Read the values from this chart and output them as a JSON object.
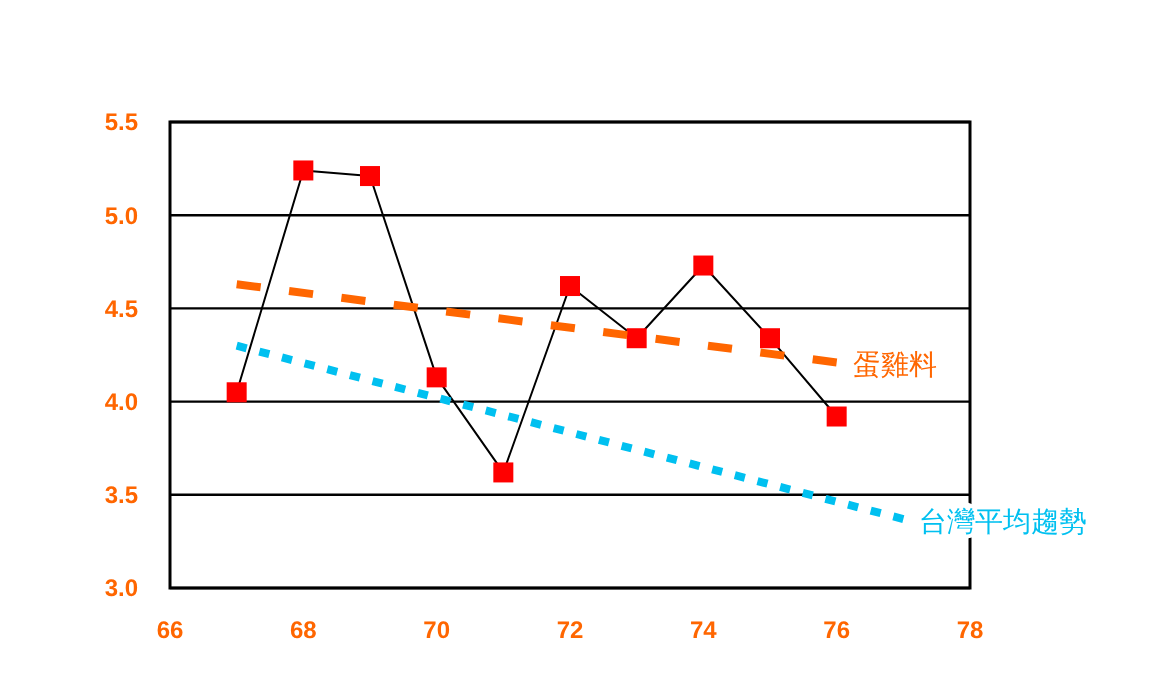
{
  "chart_data": {
    "type": "line",
    "x": [
      67,
      68,
      69,
      70,
      71,
      72,
      73,
      74,
      75,
      76
    ],
    "series": [
      {
        "color": "#ff0000",
        "marker": "square",
        "values": [
          4.05,
          5.24,
          5.21,
          4.13,
          3.62,
          4.62,
          4.34,
          4.73,
          4.34,
          3.92
        ]
      },
      {
        "name": "蛋雞料",
        "color": "#ff6600",
        "marker": "none",
        "line_style": "dashed",
        "x": [
          67,
          76
        ],
        "values": [
          4.63,
          4.21
        ]
      },
      {
        "name": "台灣平均趨勢",
        "color": "#00c0f0",
        "marker": "none",
        "line_style": "dotted",
        "x": [
          67,
          77
        ],
        "values": [
          4.3,
          3.37
        ]
      }
    ],
    "xlim": [
      66,
      78
    ],
    "xticks": [
      66,
      68,
      70,
      72,
      74,
      76,
      78
    ],
    "ylim": [
      3.0,
      5.5
    ],
    "yticks": [
      {
        "value": 3.0,
        "label": "3.0"
      },
      {
        "value": 3.5,
        "label": "3.5"
      },
      {
        "value": 4.0,
        "label": "4.0"
      },
      {
        "value": 4.5,
        "label": "4.5"
      },
      {
        "value": 5.0,
        "label": "5.0"
      },
      {
        "value": 5.5,
        "label": "5.5"
      }
    ],
    "grid": "y"
  }
}
